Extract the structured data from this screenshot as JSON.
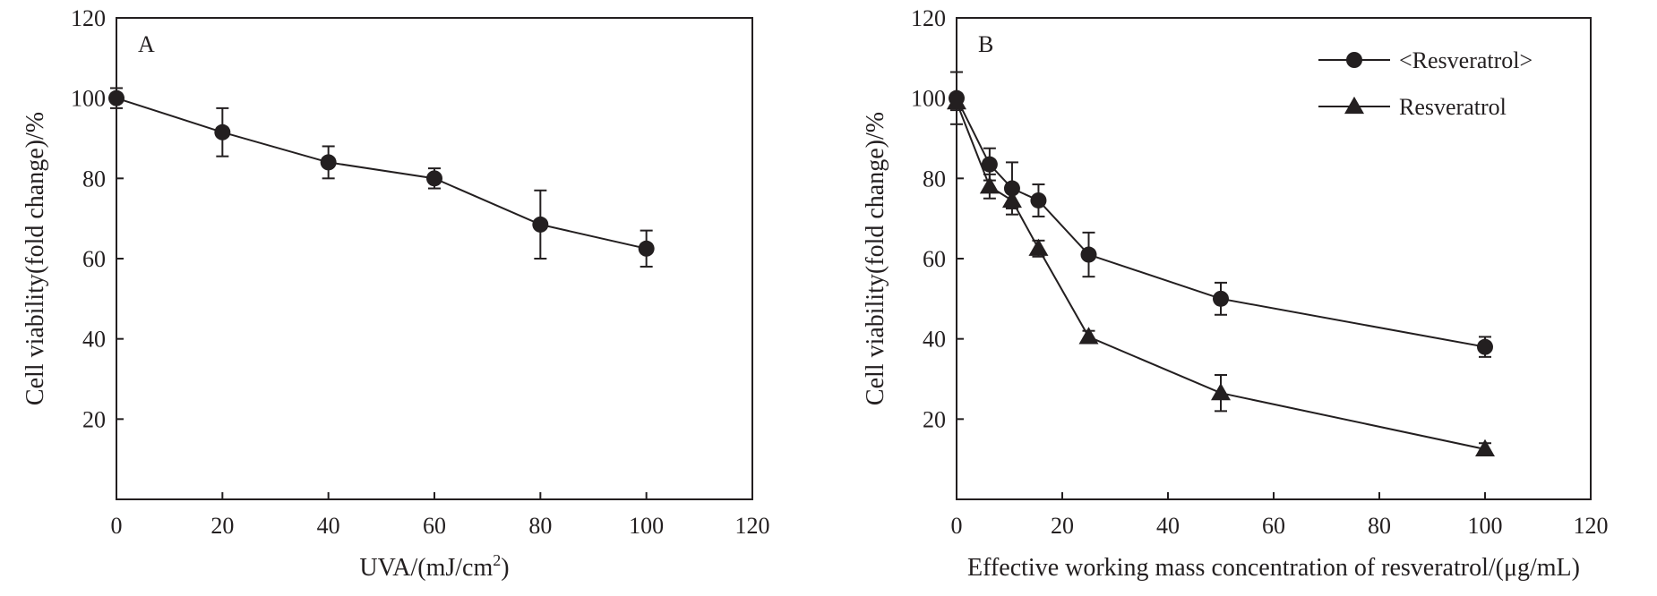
{
  "chart_data": [
    {
      "type": "scatter",
      "panel_label": "A",
      "xlabel": "UVA/(mJ/cm",
      "xlabel_sup": "2",
      "xlabel_end": ")",
      "ylabel": "Cell viability(fold change)/%",
      "xlim": [
        0,
        120
      ],
      "ylim": [
        0,
        120
      ],
      "xticks": [
        0,
        20,
        40,
        60,
        80,
        100,
        120
      ],
      "yticks": [
        20,
        40,
        60,
        80,
        100,
        120
      ],
      "grid": false,
      "series": [
        {
          "marker": "circle",
          "x": [
            0,
            20,
            40,
            60,
            80,
            100
          ],
          "y": [
            100,
            91.5,
            84,
            80,
            68.5,
            62.5
          ],
          "err": [
            2.5,
            6,
            4,
            2.5,
            8.5,
            4.5
          ]
        }
      ]
    },
    {
      "type": "scatter",
      "panel_label": "B",
      "xlabel": "Effective working mass concentration of resveratrol/(μg/mL)",
      "ylabel": "Cell viability(fold change)/%",
      "xlim": [
        0,
        120
      ],
      "ylim": [
        0,
        120
      ],
      "xticks": [
        0,
        20,
        40,
        60,
        80,
        100,
        120
      ],
      "yticks": [
        20,
        40,
        60,
        80,
        100,
        120
      ],
      "grid": false,
      "legend_position": "top-right",
      "series": [
        {
          "name": "<Resveratrol>",
          "marker": "circle",
          "x": [
            0,
            6.25,
            10.5,
            15.5,
            25,
            50,
            100
          ],
          "y": [
            100,
            83.5,
            77.5,
            74.5,
            61,
            50,
            38
          ],
          "err": [
            6.5,
            4,
            6.5,
            4,
            5.5,
            4,
            2.5
          ]
        },
        {
          "name": "Resveratrol",
          "marker": "triangle",
          "x": [
            0,
            6.25,
            10.5,
            15.5,
            25,
            50,
            100
          ],
          "y": [
            99,
            78,
            74.5,
            62.5,
            40.5,
            26.5,
            12.5
          ],
          "err": [
            2,
            3,
            2,
            2,
            1.5,
            4.5,
            1.5
          ]
        }
      ]
    }
  ]
}
